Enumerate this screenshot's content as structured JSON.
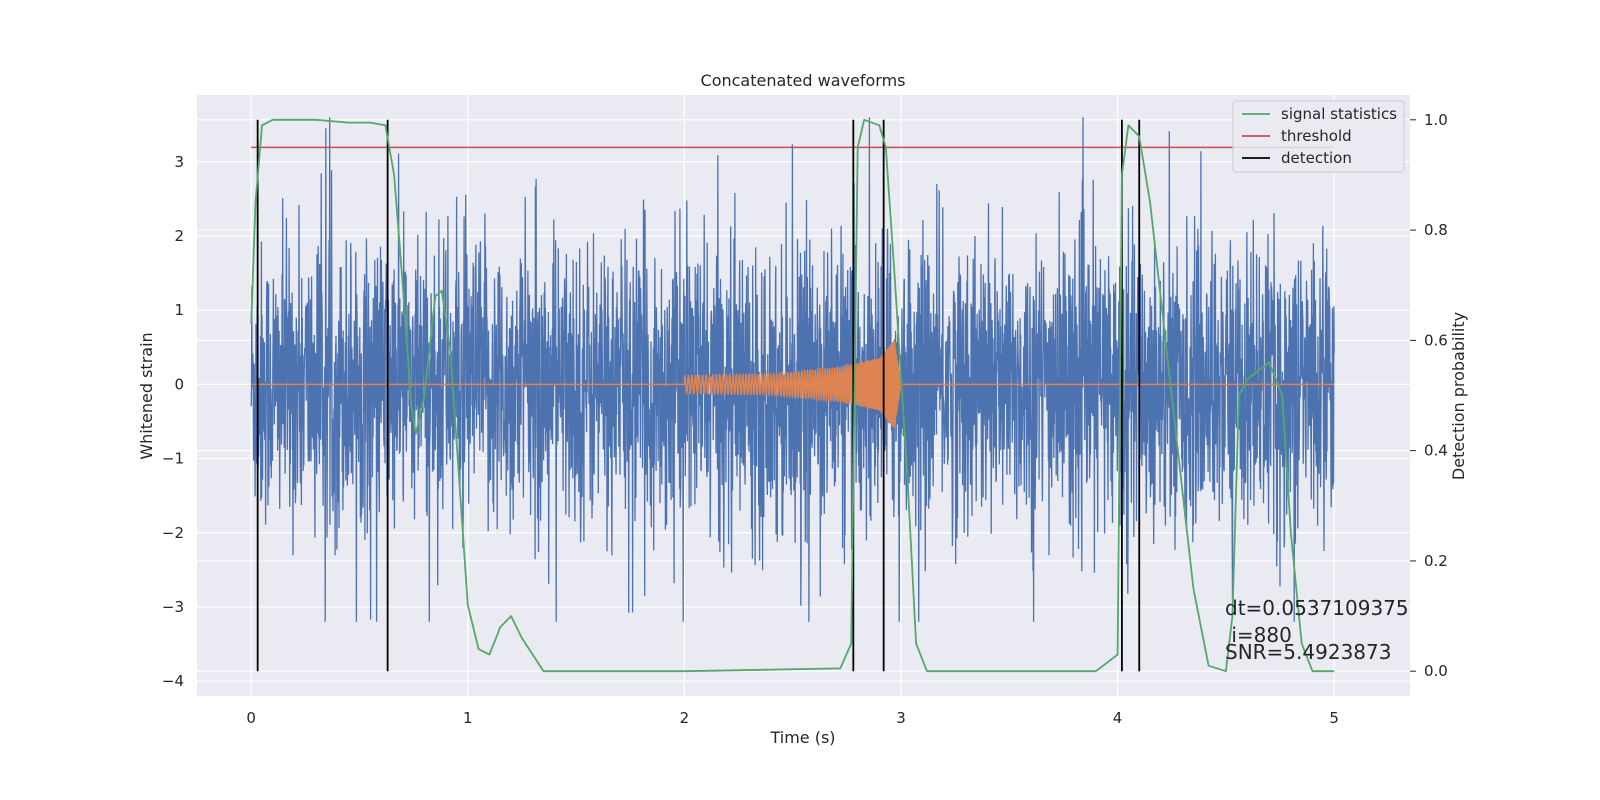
{
  "chart_data": {
    "type": "line",
    "title": "Concatenated waveforms",
    "xlabel": "Time (s)",
    "ylabel": "Whitened strain",
    "ylabel_right": "Detection probability",
    "xlim": [
      -0.25,
      5.35
    ],
    "ylim": [
      -4.2,
      3.9
    ],
    "ylim_right": [
      -0.045,
      1.045
    ],
    "x_ticks": [
      0,
      1,
      2,
      3,
      4,
      5
    ],
    "y_ticks": [
      -4,
      -3,
      -2,
      -1,
      0,
      1,
      2,
      3
    ],
    "y_ticks_right": [
      0.0,
      0.2,
      0.4,
      0.6,
      0.8,
      1.0
    ],
    "grid": true,
    "legend_placement": "top-right",
    "colors": {
      "background": "#eaeaf2",
      "strain": "#4c72b0",
      "injection": "#dd8452",
      "signal_statistics": "#55a868",
      "threshold": "#c44e52",
      "detection": "#000000"
    },
    "series": [
      {
        "name": "",
        "role": "whitened strain noise",
        "x_range": [
          0,
          5
        ],
        "y_range": [
          -3.2,
          3.6
        ],
        "typical_band": [
          -1.5,
          1.5
        ]
      },
      {
        "name": "",
        "role": "injected chirp waveform",
        "points": [
          [
            0,
            0
          ],
          [
            2.0,
            0
          ],
          [
            2.0,
            0.12
          ],
          [
            2.4,
            0.14
          ],
          [
            2.7,
            0.22
          ],
          [
            2.9,
            0.35
          ],
          [
            2.97,
            0.6
          ],
          [
            3.0,
            0.0
          ],
          [
            5,
            0
          ]
        ]
      },
      {
        "name": "signal statistics",
        "axis": "right",
        "points": [
          [
            0,
            0.63
          ],
          [
            0.02,
            0.85
          ],
          [
            0.05,
            0.99
          ],
          [
            0.1,
            1.0
          ],
          [
            0.3,
            1.0
          ],
          [
            0.45,
            0.995
          ],
          [
            0.55,
            0.995
          ],
          [
            0.62,
            0.99
          ],
          [
            0.66,
            0.9
          ],
          [
            0.7,
            0.7
          ],
          [
            0.74,
            0.48
          ],
          [
            0.76,
            0.43
          ],
          [
            0.8,
            0.5
          ],
          [
            0.85,
            0.68
          ],
          [
            0.88,
            0.69
          ],
          [
            0.92,
            0.58
          ],
          [
            1.0,
            0.12
          ],
          [
            1.05,
            0.04
          ],
          [
            1.1,
            0.03
          ],
          [
            1.15,
            0.08
          ],
          [
            1.2,
            0.1
          ],
          [
            1.25,
            0.06
          ],
          [
            1.35,
            0.0
          ],
          [
            2.0,
            0.0
          ],
          [
            2.72,
            0.005
          ],
          [
            2.77,
            0.05
          ],
          [
            2.8,
            0.95
          ],
          [
            2.83,
            1.0
          ],
          [
            2.9,
            0.99
          ],
          [
            2.93,
            0.95
          ],
          [
            2.97,
            0.72
          ],
          [
            3.03,
            0.35
          ],
          [
            3.07,
            0.05
          ],
          [
            3.12,
            0.0
          ],
          [
            3.9,
            0.0
          ],
          [
            4.0,
            0.03
          ],
          [
            4.02,
            0.9
          ],
          [
            4.05,
            0.99
          ],
          [
            4.1,
            0.97
          ],
          [
            4.15,
            0.85
          ],
          [
            4.25,
            0.5
          ],
          [
            4.35,
            0.15
          ],
          [
            4.42,
            0.01
          ],
          [
            4.5,
            0.0
          ],
          [
            4.53,
            0.1
          ],
          [
            4.56,
            0.5
          ],
          [
            4.6,
            0.53
          ],
          [
            4.7,
            0.56
          ],
          [
            4.76,
            0.5
          ],
          [
            4.8,
            0.25
          ],
          [
            4.85,
            0.05
          ],
          [
            4.9,
            0.0
          ],
          [
            5.0,
            0.0
          ]
        ]
      },
      {
        "name": "threshold",
        "axis": "right",
        "points": [
          [
            0,
            0.95
          ],
          [
            5,
            0.95
          ]
        ]
      }
    ],
    "detections": [
      0.03,
      0.63,
      2.78,
      2.92,
      4.02,
      4.1
    ],
    "legend": [
      "signal statistics",
      "threshold",
      "detection"
    ],
    "annotations": [
      "dt=0.0537109375",
      " i=880",
      "SNR=5.4923873"
    ]
  }
}
